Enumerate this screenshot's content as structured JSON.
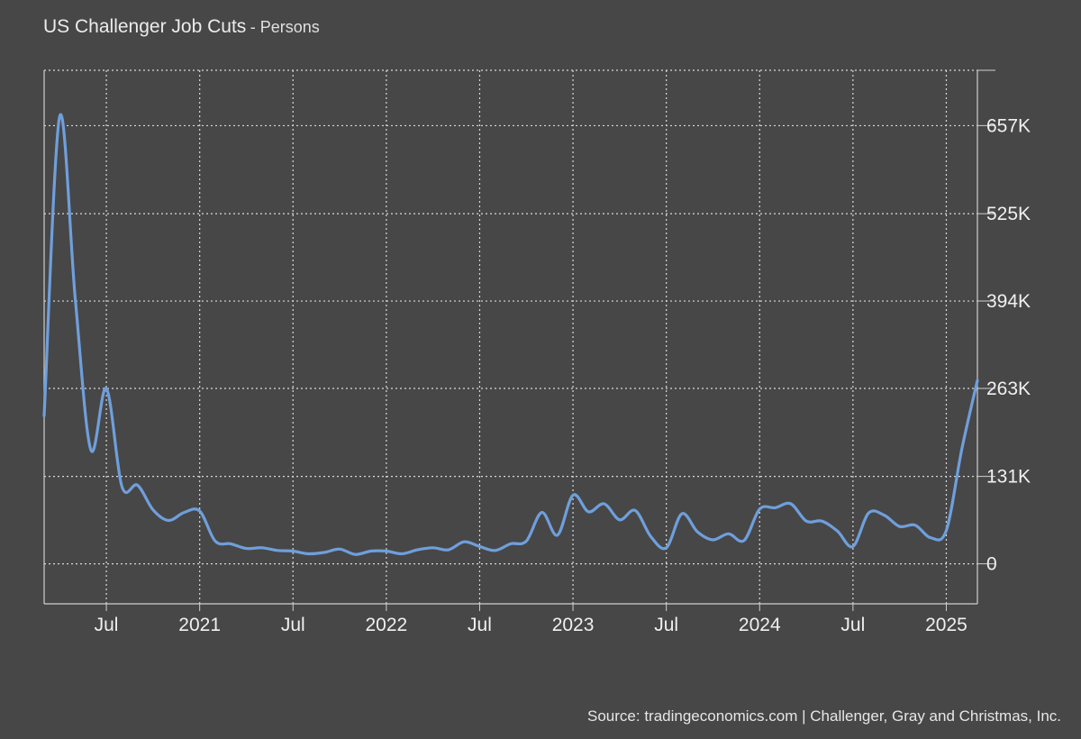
{
  "header": {
    "title": "US Challenger Job Cuts",
    "subtitle": "- Persons"
  },
  "footer": {
    "source": "Source: tradingeconomics.com | Challenger, Gray and Christmas, Inc."
  },
  "colors": {
    "background": "#474747",
    "line": "#6f9fdc",
    "grid": "#d8d8d8",
    "axis": "#cfcfcf",
    "text": "#f0f0f0"
  },
  "chart_data": {
    "type": "line",
    "title": "US Challenger Job Cuts",
    "subtitle": "- Persons",
    "xlabel": "",
    "ylabel": "",
    "ylim": [
      -60000,
      740000
    ],
    "grid": true,
    "y_ticks": [
      0,
      131000,
      263000,
      394000,
      525000,
      657000
    ],
    "y_tick_labels": [
      "0",
      "131K",
      "263K",
      "394K",
      "525K",
      "657K"
    ],
    "x_ticks": [
      "2020-07",
      "2021-01",
      "2021-07",
      "2022-01",
      "2022-07",
      "2023-01",
      "2023-07",
      "2024-01",
      "2024-07",
      "2025-01"
    ],
    "x_tick_labels": [
      "Jul",
      "2021",
      "Jul",
      "2022",
      "Jul",
      "2023",
      "Jul",
      "2024",
      "Jul",
      "2025"
    ],
    "xlim": [
      "2020-03",
      "2025-03"
    ],
    "series": [
      {
        "x": [
          "2020-03",
          "2020-04",
          "2020-05",
          "2020-06",
          "2020-07",
          "2020-08",
          "2020-09",
          "2020-10",
          "2020-11",
          "2020-12",
          "2021-01",
          "2021-02",
          "2021-03",
          "2021-04",
          "2021-05",
          "2021-06",
          "2021-07",
          "2021-08",
          "2021-09",
          "2021-10",
          "2021-11",
          "2021-12",
          "2022-01",
          "2022-02",
          "2022-03",
          "2022-04",
          "2022-05",
          "2022-06",
          "2022-07",
          "2022-08",
          "2022-09",
          "2022-10",
          "2022-11",
          "2022-12",
          "2023-01",
          "2023-02",
          "2023-03",
          "2023-04",
          "2023-05",
          "2023-06",
          "2023-07",
          "2023-08",
          "2023-09",
          "2023-10",
          "2023-11",
          "2023-12",
          "2024-01",
          "2024-02",
          "2024-03",
          "2024-04",
          "2024-05",
          "2024-06",
          "2024-07",
          "2024-08",
          "2024-09",
          "2024-10",
          "2024-11",
          "2024-12",
          "2025-01",
          "2025-02",
          "2025-03"
        ],
        "values": [
          222000,
          671000,
          398000,
          171000,
          263000,
          116000,
          118000,
          81000,
          65000,
          77000,
          79000,
          34000,
          30000,
          23000,
          24000,
          20000,
          19000,
          15000,
          17000,
          22000,
          14000,
          19000,
          19000,
          15000,
          21000,
          24000,
          21000,
          33000,
          26000,
          20000,
          30000,
          34000,
          77000,
          43000,
          103000,
          78000,
          90000,
          66000,
          80000,
          41000,
          24000,
          75000,
          48000,
          36000,
          45000,
          35000,
          82000,
          84000,
          90000,
          64000,
          64000,
          49000,
          26000,
          76000,
          73000,
          56000,
          58000,
          39000,
          50000,
          172000,
          275000
        ]
      }
    ]
  }
}
